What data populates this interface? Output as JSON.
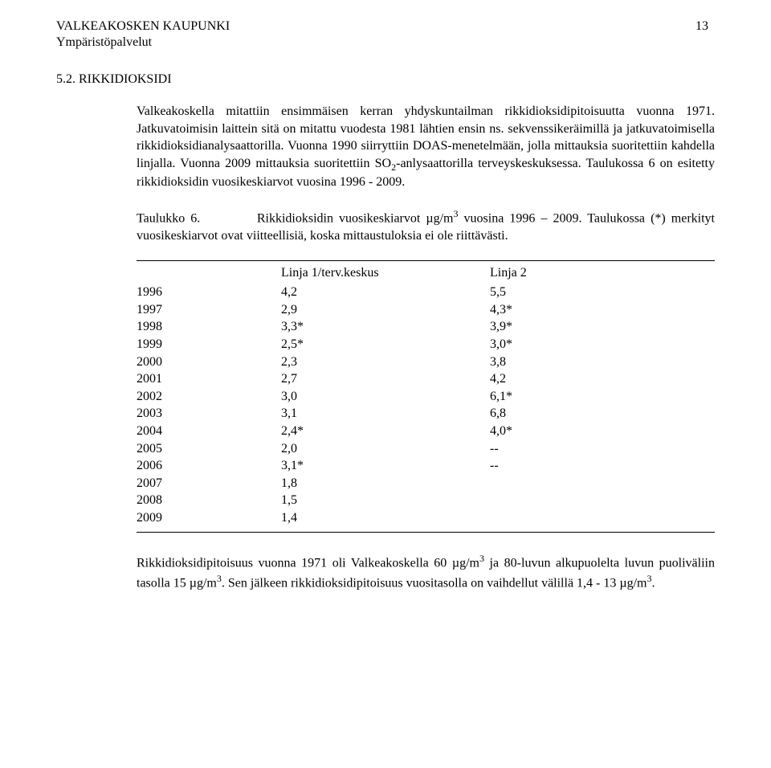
{
  "header": {
    "org_line1": "VALKEAKOSKEN KAUPUNKI",
    "org_line2": "Ympäristöpalvelut",
    "page_number": "13"
  },
  "section": {
    "number": "5.2.",
    "title": "RIKKIDIOKSIDI"
  },
  "paragraphs": {
    "p1": "Valkeakoskella mitattiin ensimmäisen kerran yhdyskuntailman rikkidioksidipitoisuutta vuonna 1971. Jatkuvatoimisin laittein sitä on mitattu vuodesta 1981 lähtien ensin ns. sekvenssikeräimillä ja jatkuvatoimisella rikkidioksidianalysaattorilla. Vuonna 1990 siirryttiin DOAS-menetelmään, jolla mittauksia suoritettiin kahdella linjalla. Vuonna 2009 mittauksia suoritettiin SO",
    "p1_after_sub": "-anlysaattorilla terveyskeskuksessa. Taulukossa 6 on esitetty rikkidioksidin vuosikeskiarvot vuosina 1996 - 2009.",
    "p1_sub": "2",
    "p2_lead": "Taulukko 6.",
    "p2_rest_a": "Rikkidioksidin vuosikeskiarvot µg/m",
    "p2_sup": "3",
    "p2_rest_b": " vuosina 1996 – 2009. Taulukossa (*) merkityt vuosikeskiarvot ovat viitteellisiä, koska mittaustuloksia ei ole riittävästi."
  },
  "table": {
    "col1_header": "Linja 1/terv.keskus",
    "col2_header": "Linja 2",
    "rows": [
      {
        "year": "1996",
        "v1": "4,2",
        "v2": "5,5"
      },
      {
        "year": "1997",
        "v1": "2,9",
        "v2": "4,3*"
      },
      {
        "year": "1998",
        "v1": "3,3*",
        "v2": "3,9*"
      },
      {
        "year": "1999",
        "v1": "2,5*",
        "v2": "3,0*"
      },
      {
        "year": "2000",
        "v1": "2,3",
        "v2": "3,8"
      },
      {
        "year": "2001",
        "v1": "2,7",
        "v2": "4,2"
      },
      {
        "year": "2002",
        "v1": "3,0",
        "v2": "6,1*"
      },
      {
        "year": "2003",
        "v1": "3,1",
        "v2": "6,8"
      },
      {
        "year": "2004",
        "v1": "2,4*",
        "v2": "4,0*"
      },
      {
        "year": "2005",
        "v1": "2,0",
        "v2": "--"
      },
      {
        "year": "2006",
        "v1": "3,1*",
        "v2": "--"
      },
      {
        "year": "2007",
        "v1": "1,8",
        "v2": ""
      },
      {
        "year": "2008",
        "v1": "1,5",
        "v2": ""
      },
      {
        "year": "2009",
        "v1": "1,4",
        "v2": ""
      }
    ]
  },
  "footer": {
    "a": "Rikkidioksidipitoisuus vuonna 1971 oli Valkeakoskella 60 µg/m",
    "sup1": "3",
    "b": " ja 80-luvun alkupuolelta luvun puoliväliin tasolla 15 µg/m",
    "sup2": "3",
    "c": ". Sen jälkeen rikkidioksidipitoisuus vuositasolla on vaihdellut välillä 1,4 - 13 µg/m",
    "sup3": "3",
    "d": "."
  }
}
